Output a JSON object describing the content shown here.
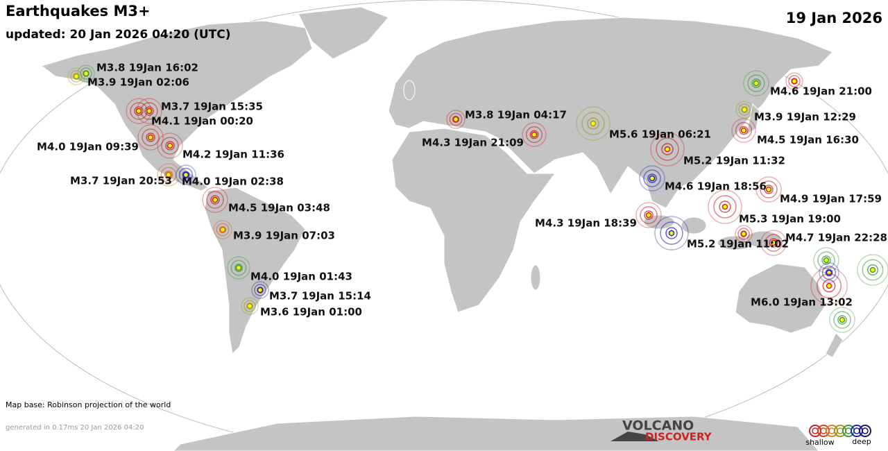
{
  "header": {
    "title": "Earthquakes M3+",
    "updated": "updated: 20 Jan 2026 04:20 (UTC)",
    "date": "19 Jan 2026"
  },
  "quakes": [
    {
      "label": "M3.8 19Jan 16:02",
      "color": "#3a9a3a"
    },
    {
      "label": "M3.9 19Jan 02:06",
      "color": "#9a9a20"
    },
    {
      "label": "M3.7 19Jan 15:35",
      "color": "#cc2222"
    },
    {
      "label": "M4.1 19Jan 00:20",
      "color": "#cc2222"
    },
    {
      "label": "M4.0 19Jan 09:39",
      "color": "#cc2222"
    },
    {
      "label": "M4.2 19Jan 11:36",
      "color": "#cc2222"
    },
    {
      "label": "M3.7 19Jan 20:53",
      "color": "#d86020"
    },
    {
      "label": "M4.0 19Jan 02:38",
      "color": "#2222bb"
    },
    {
      "label": "M4.5 19Jan 03:48",
      "color": "#cc2222"
    },
    {
      "label": "M3.9 19Jan 07:03",
      "color": "#d86020"
    },
    {
      "label": "M4.0 19Jan 01:43",
      "color": "#3a9a3a"
    },
    {
      "label": "M3.7 19Jan 15:14",
      "color": "#332288"
    },
    {
      "label": "M3.6 19Jan 01:00",
      "color": "#9a9a20"
    },
    {
      "label": "M3.8 19Jan 04:17",
      "color": "#cc2222"
    },
    {
      "label": "M4.3 19Jan 21:09",
      "color": "#cc2222"
    },
    {
      "label": "M5.6 19Jan 06:21",
      "color": "#9a9a20"
    },
    {
      "label": "M5.2 19Jan 11:32",
      "color": "#cc2222"
    },
    {
      "label": "M4.6 19Jan 18:56",
      "color": "#2222bb"
    },
    {
      "label": "M4.3 19Jan 18:39",
      "color": "#cc2222"
    },
    {
      "label": "M4.9 19Jan 17:59",
      "color": "#cc2222"
    },
    {
      "label": "M5.3 19Jan 19:00",
      "color": "#cc2222"
    },
    {
      "label": "M5.2 19Jan 11:02",
      "color": "#2222bb"
    },
    {
      "label": "M4.7 19Jan 22:28",
      "color": "#cc2222"
    },
    {
      "label": "M4.6 19Jan 21:00",
      "color": "#3a9a3a"
    },
    {
      "label": "M3.9 19Jan 12:29",
      "color": "#9a9a20"
    },
    {
      "label": "M4.5 19Jan 16:30",
      "color": "#cc2222"
    },
    {
      "label": "M6.0 19Jan 13:02",
      "color": "#cc2222"
    }
  ],
  "unlabeled_quakes": [
    {
      "color": "#cc2222"
    },
    {
      "color": "#cc2222"
    },
    {
      "color": "#3a9a3a"
    },
    {
      "color": "#2222bb"
    },
    {
      "color": "#3a9a3a"
    },
    {
      "color": "#3a9a3a"
    }
  ],
  "footer": {
    "map_base": "Map base: Robinson projection of the world",
    "generated": "generated in 0.17ms 20 Jan 2026 04:20",
    "logo_top": "VOLCANO",
    "logo_bottom": "DISCOVERY"
  },
  "legend": {
    "colors": [
      "#cc2222",
      "#d84020",
      "#d88020",
      "#9a9a20",
      "#3a9a3a",
      "#2222bb",
      "#221166"
    ],
    "shallow": "shallow",
    "deep": "deep"
  }
}
